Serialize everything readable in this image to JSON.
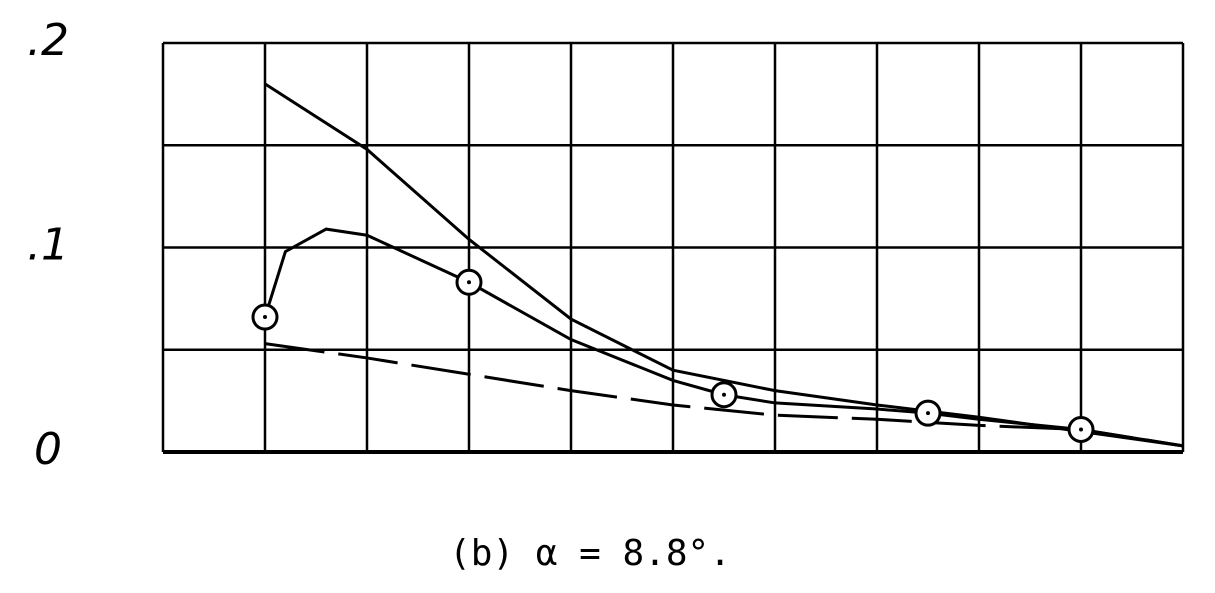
{
  "chart_data": {
    "type": "line",
    "caption": "(b) α = 8.8°.",
    "xlim": [
      0,
      10
    ],
    "xticks": [
      0,
      1,
      2,
      3,
      4,
      5,
      6,
      7,
      8,
      9,
      10
    ],
    "xtick_labels": false,
    "ylim": [
      0,
      0.2
    ],
    "yticks": [
      0,
      {
        "value": 0.1,
        "label": ".1"
      },
      {
        "value": 0.2,
        "label": ".2"
      }
    ],
    "yminor": [
      0.05,
      0.15
    ],
    "grid": true,
    "series": [
      {
        "color": "#000000",
        "dash": false,
        "marker": "none",
        "x": [
          1,
          2,
          3,
          4,
          5,
          6,
          7,
          8,
          9,
          10
        ],
        "values": [
          0.18,
          0.148,
          0.104,
          0.065,
          0.04,
          0.03,
          0.023,
          0.017,
          0.01,
          0.003
        ]
      },
      {
        "color": "#000000",
        "dash": false,
        "marker": "none",
        "x": [
          1,
          1.2,
          1.6,
          2,
          3,
          4,
          5,
          5.5,
          6,
          7,
          7.5,
          8,
          9,
          10
        ],
        "values": [
          0.066,
          0.098,
          0.109,
          0.106,
          0.083,
          0.055,
          0.035,
          0.028,
          0.024,
          0.021,
          0.019,
          0.016,
          0.011,
          0.003
        ]
      },
      {
        "color": "#000000",
        "dash": true,
        "marker": "none",
        "x": [
          1,
          2,
          3,
          4,
          5,
          6,
          7,
          8,
          9,
          10
        ],
        "values": [
          0.053,
          0.046,
          0.038,
          0.03,
          0.023,
          0.018,
          0.016,
          0.013,
          0.011,
          0.003
        ]
      },
      {
        "color": "#000000",
        "dash": false,
        "marker": "circle",
        "line": false,
        "x": [
          1,
          3,
          5.5,
          7.5,
          9
        ],
        "values": [
          0.066,
          0.083,
          0.028,
          0.019,
          0.011
        ]
      }
    ]
  }
}
